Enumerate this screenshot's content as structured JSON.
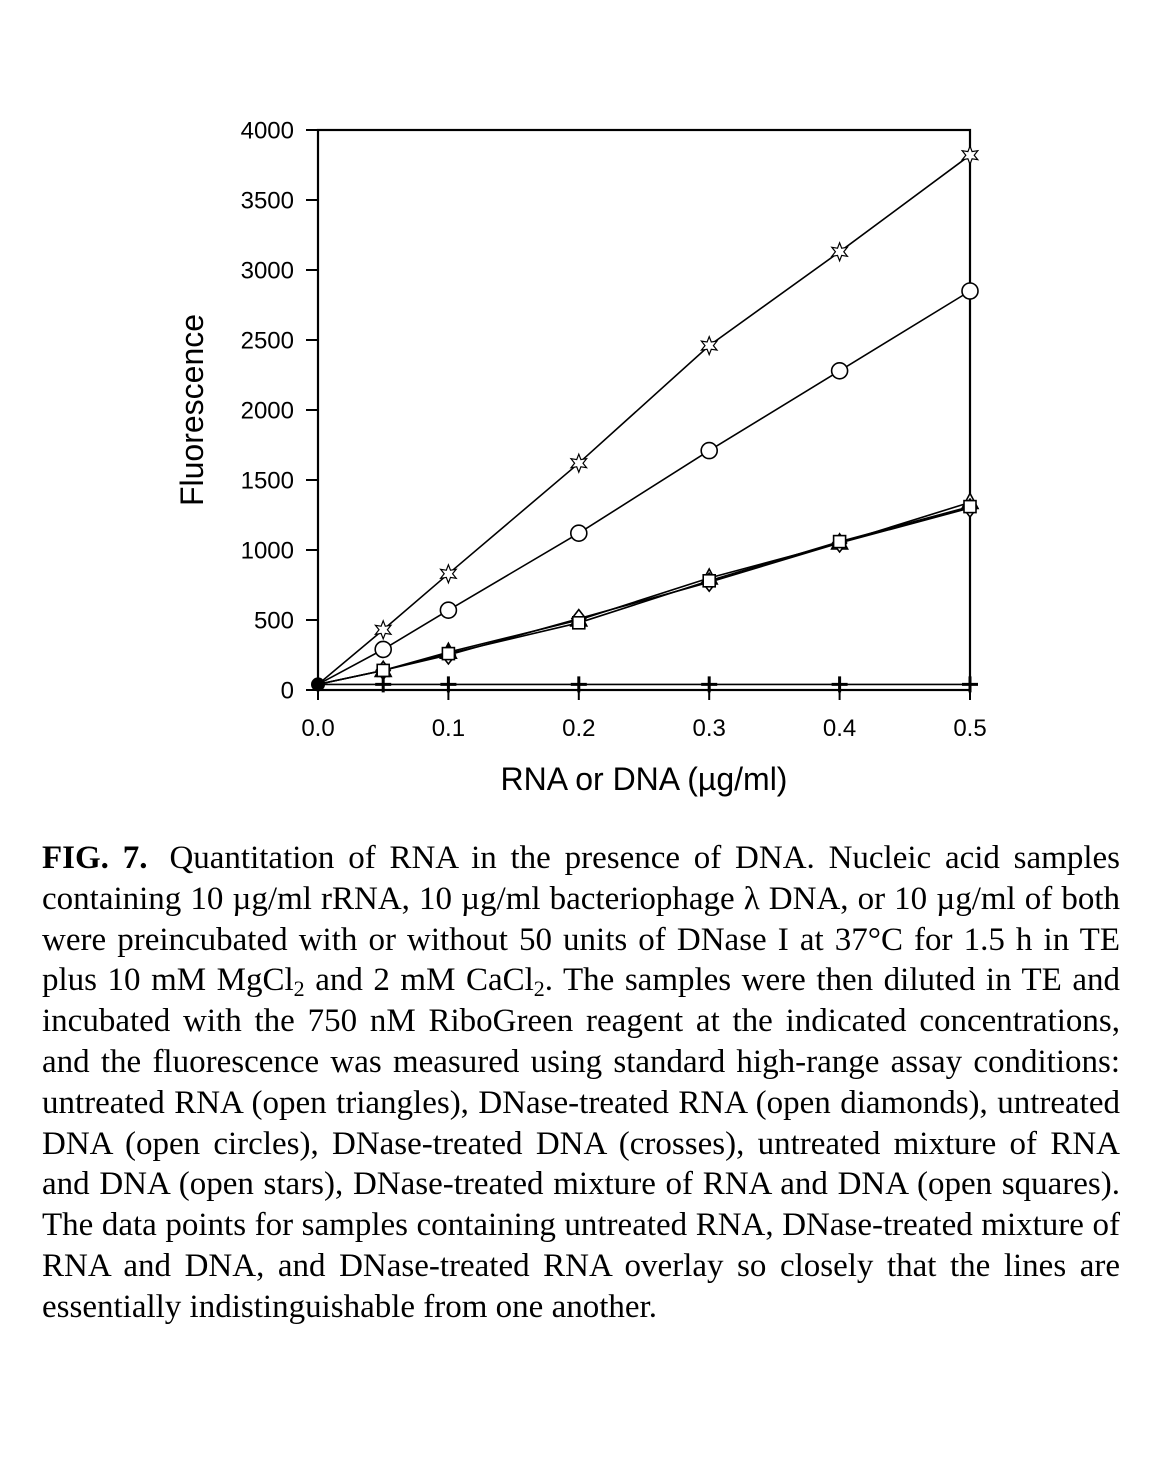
{
  "chart_data": {
    "type": "line",
    "xlabel": "RNA or DNA (µg/ml)",
    "ylabel": "Fluorescence",
    "xlim": [
      0,
      0.5
    ],
    "ylim": [
      0,
      4000
    ],
    "x_ticks": [
      "0.0",
      "0.1",
      "0.2",
      "0.3",
      "0.4",
      "0.5"
    ],
    "y_ticks": [
      "0",
      "500",
      "1000",
      "1500",
      "2000",
      "2500",
      "3000",
      "3500",
      "4000"
    ],
    "grid": false,
    "legend": "none",
    "x": [
      0,
      0.05,
      0.1,
      0.2,
      0.3,
      0.4,
      0.5
    ],
    "series": [
      {
        "marker": "open-star",
        "values": [
          40,
          430,
          830,
          1620,
          2460,
          3130,
          3820
        ]
      },
      {
        "marker": "open-circle",
        "values": [
          40,
          290,
          570,
          1120,
          1710,
          2280,
          2850
        ]
      },
      {
        "marker": "open-triangle",
        "values": [
          40,
          140,
          270,
          500,
          800,
          1050,
          1340
        ]
      },
      {
        "marker": "open-diamond",
        "values": [
          40,
          140,
          250,
          510,
          770,
          1050,
          1300
        ]
      },
      {
        "marker": "open-square",
        "values": [
          40,
          140,
          260,
          480,
          780,
          1060,
          1310
        ]
      },
      {
        "marker": "cross",
        "values": [
          40,
          40,
          40,
          40,
          40,
          40,
          40
        ]
      }
    ]
  },
  "caption": {
    "label": "FIG. 7.",
    "p1": "Quantitation of RNA in the presence of DNA. Nucleic acid samples containing 10 µg/ml rRNA, 10 µg/ml bacteriophage λ DNA, or 10 µg/ml of both were preincubated with or without 50 units of DNase I at 37°C for 1.5 h in TE plus 10 mM MgCl",
    "sub1": "2",
    "p2": " and 2 mM CaCl",
    "sub2": "2",
    "p3": ". The samples were then diluted in TE and incubated with the 750 nM RiboGreen reagent at the indicated concentrations, and the fluores­cence was measured using standard high-range assay conditions: untreated RNA (open triangles), DNase-treated RNA (open dia­monds), untreated DNA (open circles), DNase-treated DNA (crosses), untreated mixture of RNA and DNA (open stars), DNase-treated mixture of RNA and DNA (open squares). The data points for sam­ples containing untreated RNA, DNase-treated mixture of RNA and DNA, and DNase-treated RNA overlay so closely that the lines are essentially indistinguishable from one another."
  }
}
